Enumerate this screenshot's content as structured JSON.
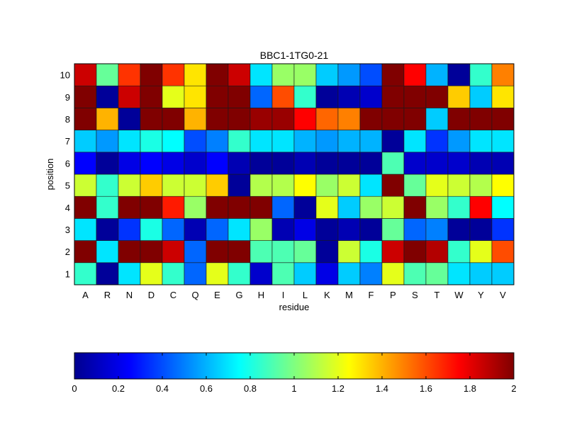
{
  "chart_data": {
    "type": "heatmap",
    "title": "BBC1-1TG0-21",
    "xlabel": "residue",
    "ylabel": "position",
    "x_categories": [
      "A",
      "R",
      "N",
      "D",
      "C",
      "Q",
      "E",
      "G",
      "H",
      "I",
      "L",
      "K",
      "M",
      "F",
      "P",
      "S",
      "T",
      "W",
      "Y",
      "V"
    ],
    "y_categories": [
      "1",
      "2",
      "3",
      "4",
      "5",
      "6",
      "7",
      "8",
      "9",
      "10"
    ],
    "value_range": [
      0,
      2
    ],
    "colormap": "jet",
    "colorbar": {
      "placement": "bottom",
      "ticks": [
        "0",
        "0.2",
        "0.4",
        "0.6",
        "0.8",
        "1",
        "1.2",
        "1.4",
        "1.6",
        "1.8",
        "2"
      ]
    },
    "values": [
      [
        0.85,
        0.05,
        0.7,
        1.2,
        0.85,
        0.45,
        1.2,
        0.85,
        0.15,
        0.9,
        0.65,
        0.2,
        0.65,
        0.5,
        1.2,
        0.9,
        0.95,
        0.7,
        0.65,
        0.65
      ],
      [
        2.0,
        0.7,
        2.0,
        2.0,
        1.85,
        0.45,
        2.0,
        2.0,
        0.9,
        0.9,
        0.95,
        0.05,
        1.15,
        0.8,
        1.85,
        2.0,
        1.9,
        0.85,
        1.2,
        1.6
      ],
      [
        0.7,
        0.05,
        0.35,
        0.8,
        0.45,
        0.1,
        0.45,
        0.7,
        1.05,
        0.1,
        0.2,
        0.05,
        0.1,
        0.05,
        0.95,
        0.45,
        0.5,
        0.05,
        0.05,
        0.35
      ],
      [
        2.0,
        0.85,
        2.0,
        2.0,
        1.7,
        1.05,
        2.0,
        2.0,
        2.0,
        0.45,
        0.05,
        1.2,
        0.65,
        1.05,
        1.15,
        2.0,
        1.05,
        0.85,
        1.75,
        0.75
      ],
      [
        1.15,
        0.85,
        1.15,
        1.35,
        1.15,
        1.15,
        1.35,
        0.05,
        1.1,
        1.1,
        1.25,
        1.05,
        1.15,
        0.7,
        2.0,
        0.95,
        1.2,
        1.15,
        1.1,
        1.25
      ],
      [
        0.25,
        0.05,
        0.2,
        0.25,
        0.2,
        0.15,
        0.25,
        0.1,
        0.05,
        0.05,
        0.1,
        0.05,
        0.05,
        0.05,
        0.9,
        0.15,
        0.15,
        0.15,
        0.1,
        0.1
      ],
      [
        0.65,
        0.55,
        0.7,
        0.8,
        0.75,
        0.4,
        0.5,
        0.85,
        0.7,
        0.7,
        0.6,
        0.55,
        0.6,
        0.6,
        0.05,
        0.7,
        0.35,
        0.55,
        0.7,
        0.7
      ],
      [
        2.0,
        1.4,
        0.05,
        2.0,
        2.0,
        1.4,
        2.0,
        2.0,
        1.95,
        1.95,
        1.75,
        1.55,
        1.5,
        2.0,
        2.0,
        2.0,
        0.65,
        2.0,
        2.0,
        2.0
      ],
      [
        2.0,
        0.05,
        1.85,
        2.0,
        1.2,
        1.3,
        2.0,
        2.0,
        0.45,
        1.6,
        0.85,
        0.05,
        0.1,
        0.15,
        2.0,
        2.0,
        2.0,
        1.35,
        0.65,
        1.3
      ],
      [
        1.85,
        0.95,
        1.65,
        2.0,
        1.65,
        1.3,
        2.0,
        1.85,
        0.7,
        1.05,
        1.05,
        0.65,
        0.55,
        0.4,
        2.0,
        1.75,
        0.6,
        0.05,
        0.85,
        1.5
      ]
    ]
  }
}
